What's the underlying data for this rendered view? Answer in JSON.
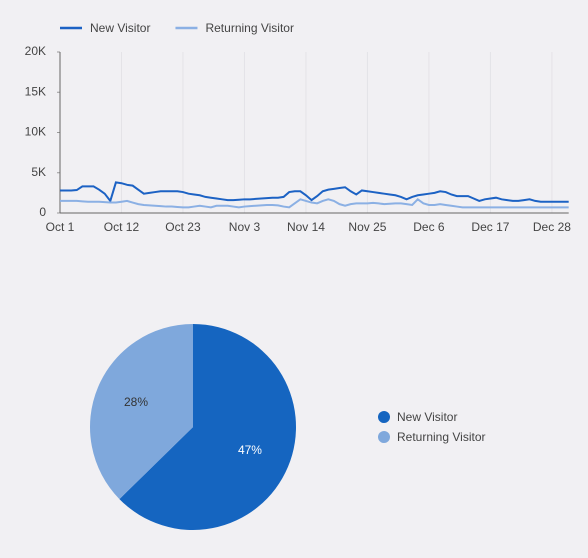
{
  "chart_data": [
    {
      "type": "line",
      "categories": [
        "Oct 1",
        null,
        null,
        null,
        null,
        null,
        null,
        null,
        null,
        null,
        null,
        "Oct 12",
        null,
        null,
        null,
        null,
        null,
        null,
        null,
        null,
        null,
        null,
        "Oct 23",
        null,
        null,
        null,
        null,
        null,
        null,
        null,
        null,
        null,
        null,
        "Nov 3",
        null,
        null,
        null,
        null,
        null,
        null,
        null,
        null,
        null,
        null,
        "Nov 14",
        null,
        null,
        null,
        null,
        null,
        null,
        null,
        null,
        null,
        null,
        "Nov 25",
        null,
        null,
        null,
        null,
        null,
        null,
        null,
        null,
        null,
        null,
        "Dec 6",
        null,
        null,
        null,
        null,
        null,
        null,
        null,
        null,
        null,
        null,
        "Dec 17",
        null,
        null,
        null,
        null,
        null,
        null,
        null,
        null,
        null,
        null,
        "Dec 28",
        null,
        null,
        null
      ],
      "series": [
        {
          "name": "New Visitor",
          "color": "#1c62c4",
          "values": [
            2800,
            2800,
            2800,
            2850,
            3300,
            3300,
            3300,
            2900,
            2400,
            1500,
            3800,
            3700,
            3500,
            3400,
            2900,
            2400,
            2500,
            2600,
            2700,
            2700,
            2700,
            2700,
            2600,
            2400,
            2300,
            2200,
            2000,
            1900,
            1800,
            1700,
            1600,
            1600,
            1650,
            1700,
            1700,
            1750,
            1800,
            1850,
            1900,
            1900,
            2000,
            2600,
            2700,
            2700,
            2200,
            1600,
            2100,
            2700,
            2900,
            3000,
            3100,
            3200,
            2700,
            2300,
            2800,
            2700,
            2600,
            2500,
            2400,
            2300,
            2200,
            2000,
            1700,
            2000,
            2200,
            2300,
            2400,
            2500,
            2700,
            2600,
            2300,
            2100,
            2100,
            2100,
            1800,
            1500,
            1700,
            1800,
            1900,
            1700,
            1600,
            1500,
            1500,
            1600,
            1700,
            1500,
            1400,
            1400,
            1400,
            1400,
            1400,
            1400
          ]
        },
        {
          "name": "Returning Visitor",
          "color": "#8bb0e4",
          "values": [
            1500,
            1500,
            1500,
            1500,
            1450,
            1400,
            1400,
            1400,
            1350,
            1300,
            1300,
            1400,
            1500,
            1300,
            1100,
            1000,
            950,
            900,
            850,
            800,
            800,
            750,
            700,
            700,
            800,
            900,
            800,
            700,
            900,
            900,
            900,
            800,
            700,
            800,
            850,
            900,
            950,
            1000,
            1000,
            950,
            800,
            700,
            1200,
            1700,
            1500,
            1300,
            1200,
            1500,
            1700,
            1500,
            1100,
            900,
            1100,
            1200,
            1200,
            1200,
            1250,
            1200,
            1100,
            1150,
            1200,
            1200,
            1100,
            1000,
            1700,
            1200,
            1000,
            1000,
            1100,
            1000,
            900,
            800,
            700,
            700,
            700,
            700,
            700,
            700,
            700,
            700,
            700,
            700,
            700,
            700,
            700,
            700,
            700,
            700,
            700,
            700,
            700,
            700
          ]
        }
      ],
      "ylim": [
        0,
        20000
      ],
      "yticks": [
        0,
        {
          "value": 5000,
          "label": "5K"
        },
        {
          "value": 10000,
          "label": "10K"
        },
        {
          "value": 15000,
          "label": "15K"
        },
        {
          "value": 20000,
          "label": "20K"
        }
      ],
      "legend": "top-left"
    },
    {
      "type": "pie",
      "categories": [
        "New Visitor",
        "Returning Visitor"
      ],
      "values": [
        47,
        28
      ],
      "value_labels": [
        "47%",
        "28%"
      ],
      "colors": [
        "#1565c0",
        "#7fa8dc"
      ],
      "legend": "right"
    }
  ]
}
